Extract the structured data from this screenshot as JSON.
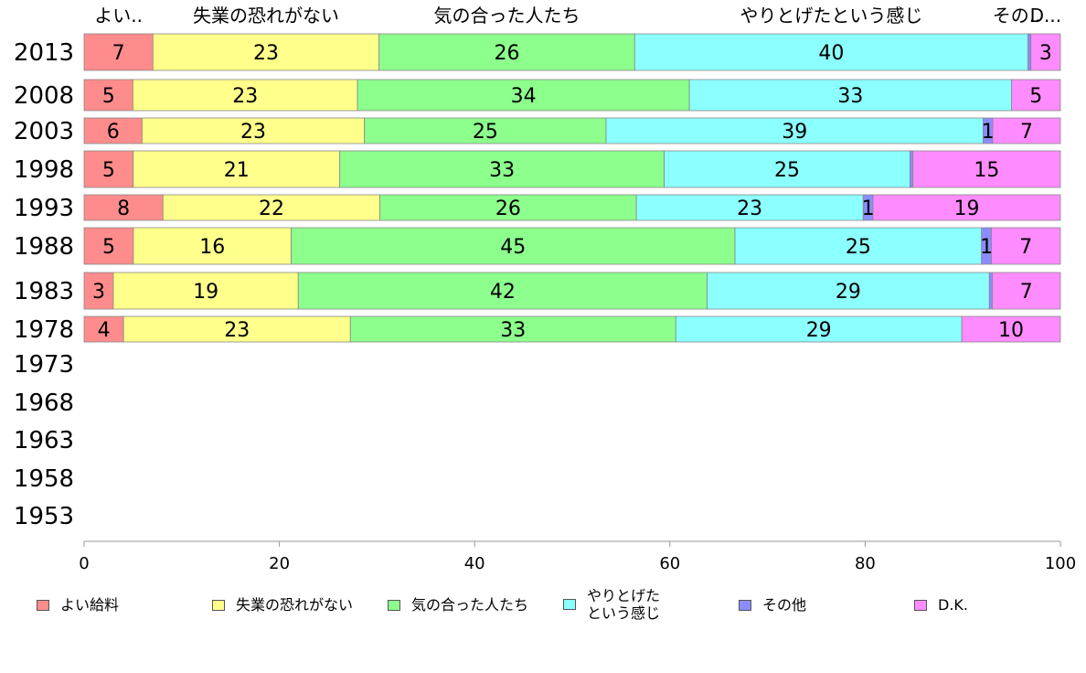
{
  "chart_data": {
    "type": "bar",
    "orientation": "horizontal",
    "stacked": true,
    "categories": [
      "2013",
      "2008",
      "2003",
      "1998",
      "1993",
      "1988",
      "1983",
      "1978",
      "1973",
      "1968",
      "1963",
      "1958",
      "1953"
    ],
    "series": [
      {
        "name": "よい給料",
        "top_label": "よい..",
        "color": "#ff8c8c",
        "values": [
          7,
          5,
          6,
          5,
          8,
          5,
          3,
          4,
          null,
          null,
          null,
          null,
          null
        ]
      },
      {
        "name": "失業の恐れがない",
        "top_label": "失業の恐れがない",
        "color": "#ffff8c",
        "values": [
          23,
          23,
          23,
          21,
          22,
          16,
          19,
          23,
          null,
          null,
          null,
          null,
          null
        ]
      },
      {
        "name": "気の合った人たち",
        "top_label": "気の合った人たち",
        "color": "#8cff8c",
        "values": [
          26,
          34,
          25,
          33,
          26,
          45,
          42,
          33,
          null,
          null,
          null,
          null,
          null
        ]
      },
      {
        "name": "やりとげた\nという感じ",
        "top_label": "やりとげたという感じ",
        "color": "#8cffff",
        "values": [
          40,
          33,
          39,
          25,
          23,
          25,
          29,
          29,
          null,
          null,
          null,
          null,
          null
        ]
      },
      {
        "name": "その他",
        "top_label": "その..",
        "color": "#8c8cff",
        "values": [
          0.3,
          0,
          1,
          0.3,
          1,
          1,
          0.3,
          0,
          null,
          null,
          null,
          null,
          null
        ]
      },
      {
        "name": "D.K.",
        "top_label": "D...",
        "color": "#ff8cff",
        "values": [
          3,
          5,
          7,
          15,
          19,
          7,
          7,
          10,
          null,
          null,
          null,
          null,
          null
        ]
      }
    ],
    "xlim": [
      0,
      100
    ],
    "xticks": [
      0,
      20,
      40,
      60,
      80,
      100
    ],
    "legend_position": "bottom",
    "grid": false
  }
}
